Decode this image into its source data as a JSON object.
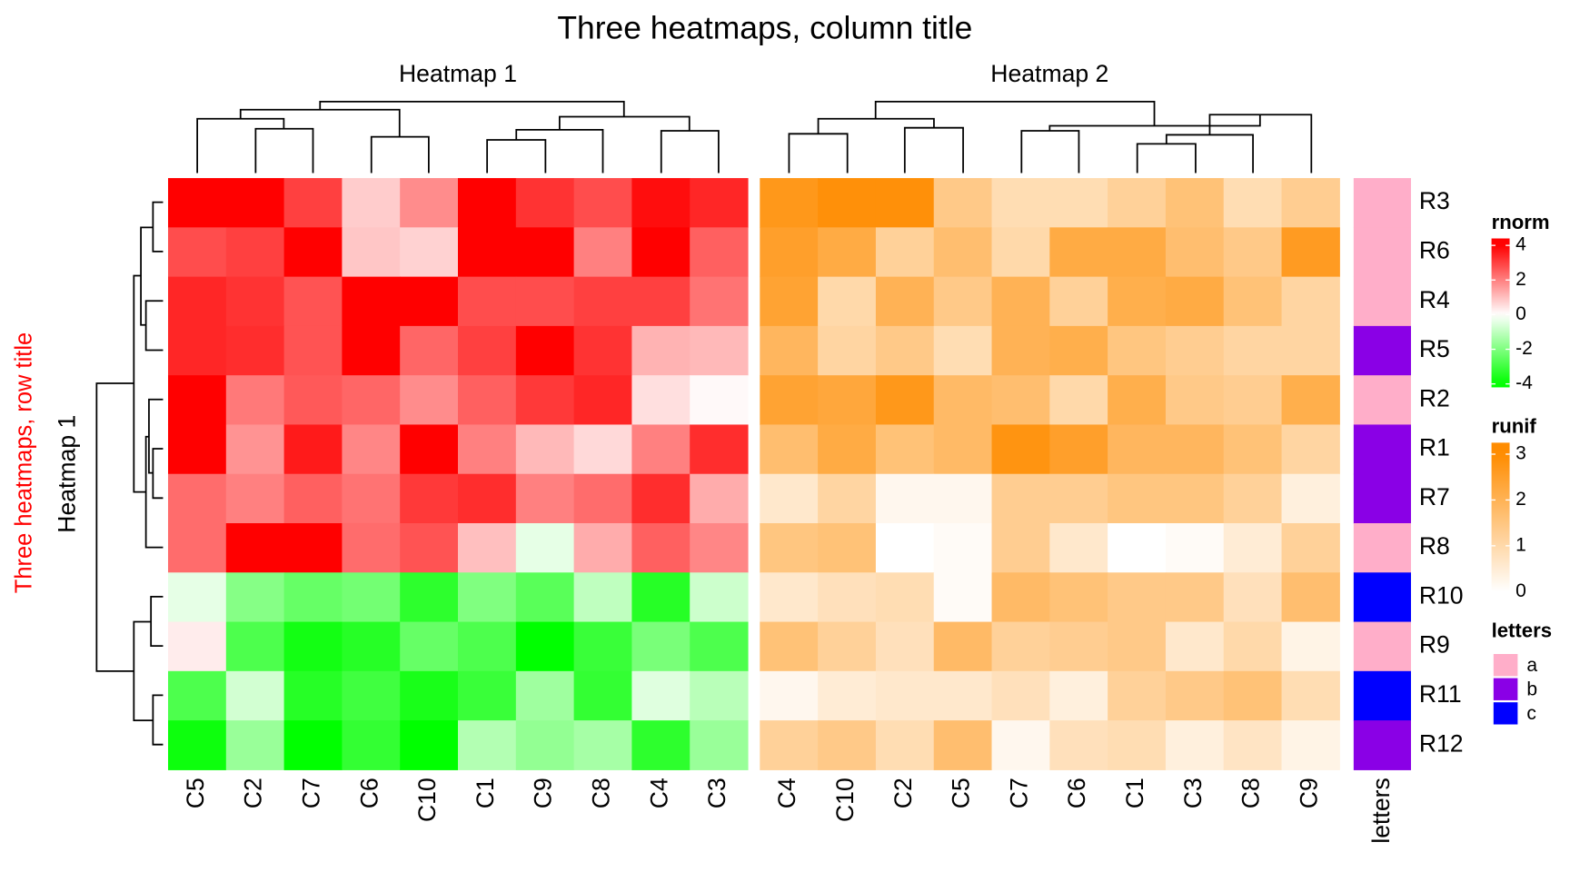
{
  "title": "Three heatmaps, column title",
  "row_title": "Three heatmaps, row title",
  "rows": [
    "R3",
    "R6",
    "R4",
    "R5",
    "R2",
    "R1",
    "R7",
    "R8",
    "R10",
    "R9",
    "R11",
    "R12"
  ],
  "chart_data": [
    {
      "type": "heatmap",
      "title": "Heatmap 1",
      "row_title": "Heatmap 1",
      "columns": [
        "C5",
        "C2",
        "C7",
        "C6",
        "C10",
        "C1",
        "C9",
        "C8",
        "C4",
        "C3"
      ],
      "values": [
        [
          4.0,
          4.2,
          3.0,
          0.8,
          1.8,
          4.2,
          3.2,
          2.8,
          3.8,
          3.4
        ],
        [
          2.8,
          3.0,
          4.2,
          0.9,
          0.7,
          4.2,
          4.2,
          2.0,
          4.2,
          2.5
        ],
        [
          3.4,
          3.2,
          2.7,
          4.4,
          4.4,
          2.8,
          2.8,
          3.0,
          3.0,
          2.2
        ],
        [
          3.4,
          3.3,
          2.7,
          4.4,
          2.4,
          3.0,
          4.2,
          3.2,
          1.2,
          1.1
        ],
        [
          4.2,
          2.1,
          2.6,
          2.4,
          1.8,
          2.5,
          3.1,
          3.4,
          0.5,
          0.1
        ],
        [
          4.2,
          1.7,
          3.6,
          1.9,
          4.4,
          2.0,
          1.1,
          0.6,
          2.0,
          3.3
        ],
        [
          2.3,
          2.0,
          2.5,
          2.2,
          3.1,
          3.3,
          2.0,
          2.3,
          3.3,
          1.3
        ],
        [
          2.3,
          4.4,
          4.4,
          2.3,
          2.7,
          1.0,
          -0.4,
          1.3,
          2.5,
          1.9
        ],
        [
          -0.4,
          -1.9,
          -2.4,
          -2.2,
          -3.3,
          -2.0,
          -2.6,
          -1.0,
          -3.4,
          -0.8
        ],
        [
          0.3,
          -2.8,
          -3.7,
          -3.4,
          -2.4,
          -2.8,
          -4.0,
          -3.1,
          -2.1,
          -2.8
        ],
        [
          -2.8,
          -0.7,
          -3.4,
          -3.0,
          -3.6,
          -3.1,
          -1.5,
          -3.2,
          -0.5,
          -1.1
        ],
        [
          -3.8,
          -1.6,
          -4.0,
          -3.2,
          -4.2,
          -1.2,
          -1.7,
          -1.4,
          -3.3,
          -1.6
        ]
      ],
      "legend": {
        "title": "rnorm",
        "clim": [
          -4.2,
          4.4
        ],
        "ticks": [
          -4,
          -2,
          0,
          2,
          4
        ],
        "colors": [
          {
            "value": -4,
            "color": "#00ff00"
          },
          {
            "value": 0,
            "color": "#ffffff"
          },
          {
            "value": 4,
            "color": "#ff0000"
          }
        ]
      }
    },
    {
      "type": "heatmap",
      "title": "Heatmap 2",
      "columns": [
        "C4",
        "C10",
        "C2",
        "C5",
        "C7",
        "C6",
        "C1",
        "C3",
        "C8",
        "C9"
      ],
      "values": [
        [
          2.7,
          2.9,
          2.9,
          1.4,
          0.9,
          0.9,
          1.2,
          1.6,
          0.9,
          1.3
        ],
        [
          2.5,
          2.2,
          1.2,
          1.7,
          1.0,
          2.2,
          2.2,
          1.7,
          1.4,
          2.6
        ],
        [
          2.4,
          1.0,
          2.0,
          1.4,
          2.0,
          1.2,
          2.1,
          2.2,
          1.6,
          1.1
        ],
        [
          1.9,
          1.1,
          1.4,
          0.9,
          2.0,
          2.1,
          1.5,
          1.3,
          1.1,
          1.1
        ],
        [
          2.4,
          2.3,
          2.7,
          1.8,
          1.7,
          1.0,
          2.1,
          1.4,
          1.3,
          2.1
        ],
        [
          1.7,
          2.2,
          1.6,
          1.8,
          2.8,
          2.5,
          1.9,
          1.9,
          1.6,
          1.1
        ],
        [
          0.6,
          1.1,
          0.2,
          0.2,
          1.3,
          1.3,
          1.5,
          1.5,
          1.2,
          0.4
        ],
        [
          1.5,
          1.6,
          0.0,
          0.1,
          1.3,
          0.6,
          0.0,
          0.1,
          0.5,
          1.2
        ],
        [
          0.6,
          0.8,
          0.9,
          0.1,
          1.8,
          1.6,
          1.4,
          1.4,
          0.8,
          1.7
        ],
        [
          1.6,
          1.2,
          0.8,
          1.8,
          1.2,
          1.3,
          1.4,
          0.6,
          1.0,
          0.3
        ],
        [
          0.2,
          0.5,
          0.6,
          0.6,
          0.8,
          0.4,
          1.2,
          1.4,
          1.6,
          0.9
        ],
        [
          1.2,
          1.4,
          0.9,
          1.7,
          0.2,
          0.8,
          0.9,
          0.4,
          0.7,
          0.3
        ]
      ],
      "legend": {
        "title": "runif",
        "clim": [
          0,
          3.25
        ],
        "ticks": [
          0,
          1,
          2,
          3
        ],
        "colors": [
          {
            "value": 0,
            "color": "#ffffff"
          },
          {
            "value": 3,
            "color": "#ff8c00"
          }
        ]
      }
    },
    {
      "type": "annotation",
      "name": "letters",
      "values": [
        "a",
        "a",
        "a",
        "b",
        "a",
        "b",
        "b",
        "a",
        "c",
        "a",
        "c",
        "b"
      ],
      "legend": {
        "title": "letters",
        "levels": [
          {
            "label": "a",
            "color": "#ffaec9"
          },
          {
            "label": "b",
            "color": "#8a00e6"
          },
          {
            "label": "c",
            "color": "#0000ff"
          }
        ]
      }
    }
  ]
}
